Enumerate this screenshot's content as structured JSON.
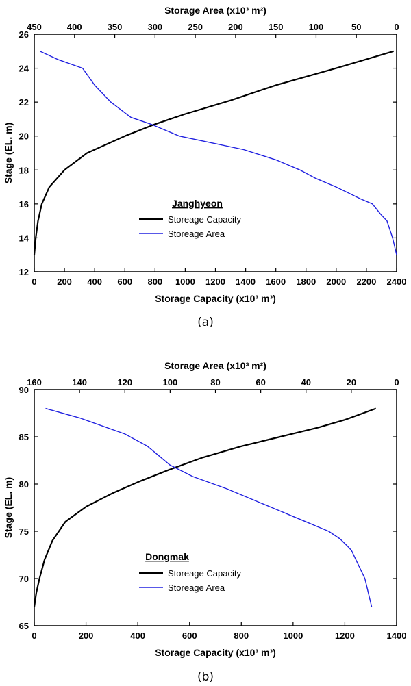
{
  "chart_data": [
    {
      "type": "line",
      "caption": "(a)",
      "legend_title": "Janghyeon",
      "ylabel": "Stage (EL. m)",
      "xlabel_bottom": "Storage Capacity (x10³ m³)",
      "xlabel_top": "Storage Area (x10³ m²)",
      "xlim_bottom": [
        0,
        2400
      ],
      "xlim_top": [
        450,
        0
      ],
      "ylim": [
        12,
        26
      ],
      "xticks_bottom": [
        0,
        200,
        400,
        600,
        800,
        1000,
        1200,
        1400,
        1600,
        1800,
        2000,
        2200,
        2400
      ],
      "xticks_top": [
        450,
        400,
        350,
        300,
        250,
        200,
        150,
        100,
        50,
        0
      ],
      "yticks": [
        12,
        14,
        16,
        18,
        20,
        22,
        24,
        26
      ],
      "series": [
        {
          "name": "Storeage Capacity",
          "axis": "bottom",
          "color": "#000000",
          "x": [
            0,
            10,
            25,
            50,
            100,
            200,
            350,
            600,
            800,
            1000,
            1300,
            1600,
            2000,
            2380
          ],
          "y": [
            13,
            14,
            15,
            16,
            17,
            18,
            19,
            20,
            20.7,
            21.3,
            22.1,
            23,
            24,
            25
          ]
        },
        {
          "name": "Storeage Area",
          "axis": "top",
          "color": "#2020e0",
          "x": [
            443,
            420,
            390,
            375,
            355,
            330,
            305,
            270,
            230,
            190,
            150,
            120,
            100,
            75,
            45,
            30,
            20,
            12,
            5,
            0
          ],
          "y": [
            25,
            24.5,
            24,
            23,
            22,
            21.1,
            20.7,
            20,
            19.6,
            19.2,
            18.6,
            18,
            17.5,
            17,
            16.3,
            16,
            15.4,
            15,
            14,
            13
          ]
        }
      ]
    },
    {
      "type": "line",
      "caption": "(b)",
      "legend_title": "Dongmak",
      "ylabel": "Stage (EL. m)",
      "xlabel_bottom": "Storage Capacity (x10³ m³)",
      "xlabel_top": "Storage Area (x10³ m²)",
      "xlim_bottom": [
        0,
        1400
      ],
      "xlim_top": [
        160,
        0
      ],
      "ylim": [
        65,
        90
      ],
      "xticks_bottom": [
        0,
        200,
        400,
        600,
        800,
        1000,
        1200,
        1400
      ],
      "xticks_top": [
        160,
        140,
        120,
        100,
        80,
        60,
        40,
        20,
        0
      ],
      "yticks": [
        65,
        70,
        75,
        80,
        85,
        90
      ],
      "series": [
        {
          "name": "Storeage Capacity",
          "axis": "bottom",
          "color": "#000000",
          "x": [
            0,
            8,
            20,
            40,
            70,
            120,
            200,
            300,
            400,
            520,
            650,
            800,
            950,
            1100,
            1200,
            1320
          ],
          "y": [
            67,
            68.5,
            70,
            72,
            74,
            76,
            77.6,
            79,
            80.2,
            81.5,
            82.8,
            84,
            85,
            86,
            86.8,
            88
          ],
          "x_end": 1320
        },
        {
          "name": "Storeage Area",
          "axis": "top",
          "color": "#2020e0",
          "x": [
            155,
            140,
            120,
            110,
            100,
            90,
            75,
            60,
            50,
            45,
            40,
            35,
            30,
            25,
            22,
            20,
            18,
            16,
            14,
            13,
            12,
            11
          ],
          "y": [
            88,
            87,
            85.3,
            84,
            82,
            80.8,
            79.5,
            78,
            77,
            76.5,
            76,
            75.5,
            75,
            74.2,
            73.5,
            73,
            72,
            71,
            70,
            69,
            68,
            67
          ]
        }
      ]
    }
  ]
}
